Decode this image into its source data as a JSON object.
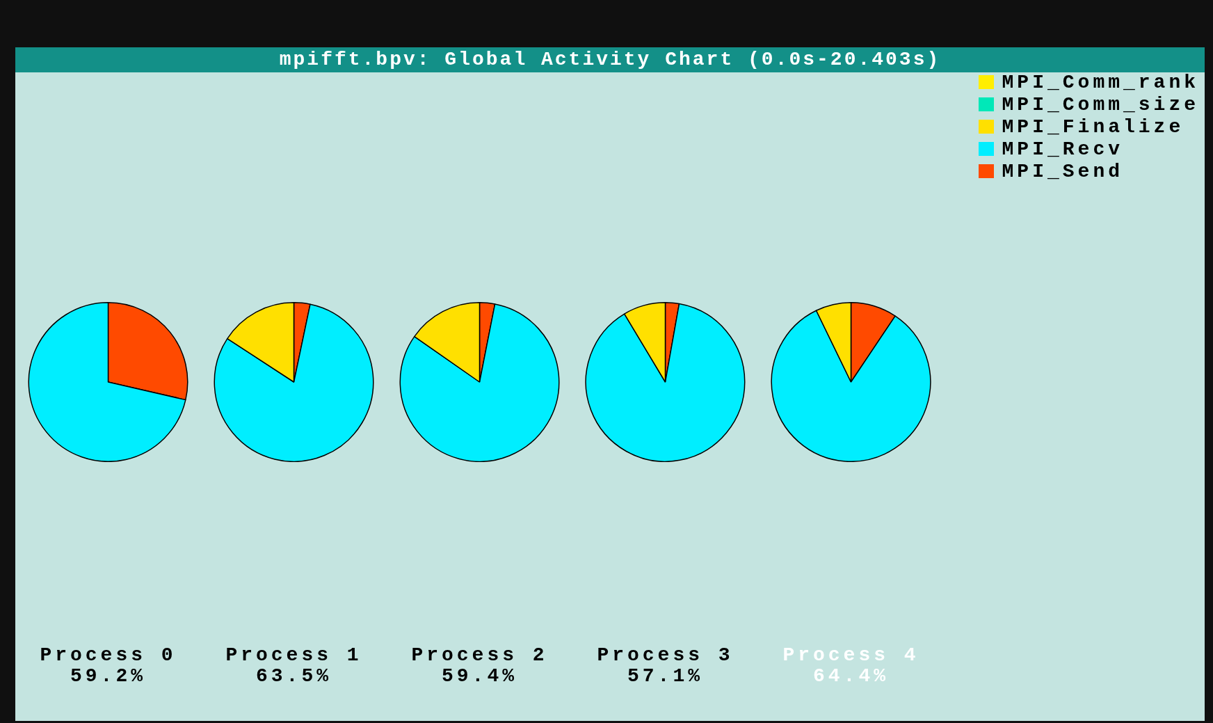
{
  "chart_data": {
    "type": "pie",
    "title": "mpifft.bpv: Global Activity Chart (0.0s-20.403s)",
    "legend": "top right",
    "categories": [
      "MPI_Send",
      "MPI_Recv",
      "MPI_Finalize",
      "MPI_Comm_rank",
      "MPI_Comm_size"
    ],
    "colors": [
      "#ff4a00",
      "#00eeff",
      "#ffe000",
      "#ffee00",
      "#00e8b8"
    ],
    "annotations": [
      "59.2%",
      "63.5%",
      "59.4%",
      "57.1%",
      "64.4%"
    ],
    "series": [
      {
        "name": "Process 0",
        "values": [
          28.6,
          71.4,
          0,
          0,
          0
        ]
      },
      {
        "name": "Process 1",
        "values": [
          3.3,
          80.9,
          15.8,
          0,
          0
        ]
      },
      {
        "name": "Process 2",
        "values": [
          3.1,
          81.6,
          15.3,
          0,
          0
        ]
      },
      {
        "name": "Process 3",
        "values": [
          2.8,
          88.6,
          8.6,
          0,
          0
        ]
      },
      {
        "name": "Process 4",
        "values": [
          9.4,
          83.4,
          7.2,
          0,
          0
        ]
      }
    ]
  }
}
